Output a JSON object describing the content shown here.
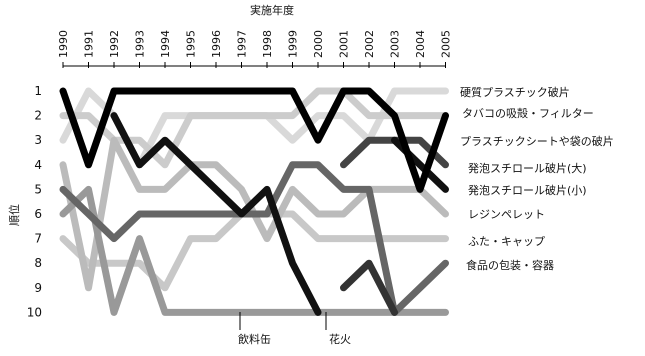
{
  "chart_data": {
    "type": "line",
    "title": "",
    "xlabel": "実施年度",
    "ylabel": "順位",
    "x": [
      1990,
      1991,
      1992,
      1993,
      1994,
      1995,
      1996,
      1997,
      1998,
      1999,
      2000,
      2001,
      2002,
      2003,
      2004,
      2005
    ],
    "ylim": [
      10,
      1
    ],
    "yticks": [
      1,
      2,
      3,
      4,
      5,
      6,
      7,
      8,
      9,
      10
    ],
    "grid": false,
    "legend": "right",
    "series": [
      {
        "name": "硬質プラスチック破片",
        "color": "#d9d9d9",
        "values": [
          3,
          1,
          2,
          4,
          2,
          2,
          2,
          2,
          2,
          3,
          2,
          2,
          3,
          1,
          1,
          1
        ]
      },
      {
        "name": "タバコの吸殻・フィルター",
        "color": "#cccccc",
        "values": [
          2,
          2,
          3,
          3,
          4,
          2,
          2,
          2,
          2,
          2,
          1,
          1,
          2,
          2,
          2,
          2
        ]
      },
      {
        "name": "プラスチックシートや袋の破片",
        "color": "#000000",
        "values": [
          1,
          4,
          1,
          1,
          1,
          1,
          1,
          1,
          1,
          1,
          3,
          1,
          1,
          2,
          5,
          2
        ]
      },
      {
        "name": "発泡スチロール破片(大)",
        "color": "#444444",
        "values": [
          null,
          null,
          null,
          null,
          null,
          null,
          null,
          null,
          null,
          null,
          null,
          4,
          3,
          3,
          3,
          4
        ]
      },
      {
        "name": "発泡スチロール破片(小)",
        "color": "#111111",
        "values": [
          null,
          null,
          2,
          4,
          3,
          4,
          5,
          6,
          5,
          8,
          10,
          null,
          null,
          3,
          4,
          5
        ]
      },
      {
        "name": "レジンペレット",
        "color": "#bbbbbb",
        "values": [
          4,
          9,
          3,
          5,
          5,
          4,
          4,
          5,
          7,
          5,
          6,
          6,
          5,
          5,
          5,
          6
        ]
      },
      {
        "name": "ふた・キャップ",
        "color": "#c8c8c8",
        "values": [
          7,
          8,
          8,
          8,
          9,
          7,
          7,
          6,
          6,
          6,
          7,
          7,
          7,
          7,
          7,
          7
        ]
      },
      {
        "name": "食品の包装・容器",
        "color": "#666666",
        "values": [
          5,
          6,
          7,
          6,
          6,
          6,
          6,
          6,
          6,
          4,
          4,
          5,
          5,
          10,
          9,
          8
        ]
      },
      {
        "name": "飲料缶",
        "color": "#999999",
        "values": [
          6,
          5,
          10,
          7,
          10,
          10,
          10,
          10,
          10,
          10,
          10,
          10,
          10,
          10,
          10,
          10
        ]
      },
      {
        "name": "花火",
        "color": "#333333",
        "values": [
          null,
          null,
          null,
          null,
          null,
          null,
          null,
          null,
          null,
          null,
          null,
          9,
          8,
          10,
          null,
          null
        ]
      }
    ],
    "annotations": [
      "飲料缶",
      "花火"
    ]
  }
}
